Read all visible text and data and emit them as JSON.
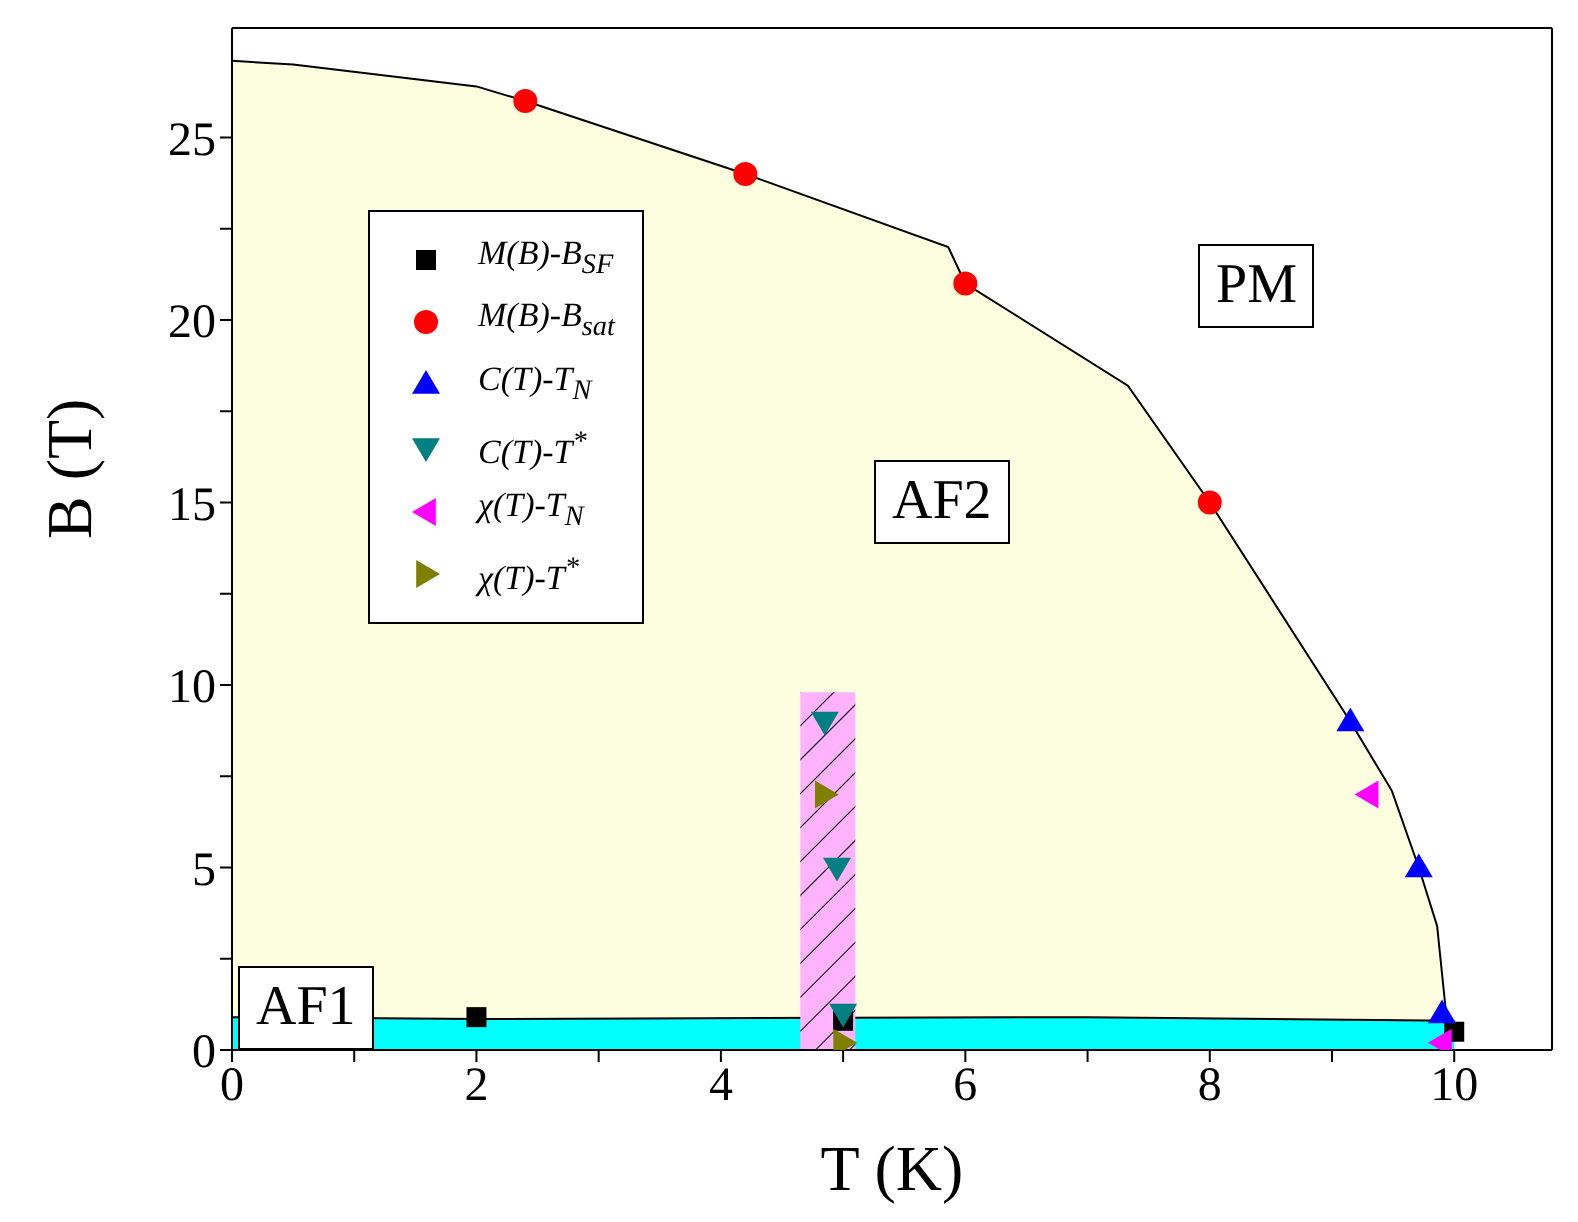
{
  "chart_data": {
    "type": "scatter",
    "xlabel": "T (K)",
    "ylabel": "B (T)",
    "xlim": [
      0,
      10.8
    ],
    "ylim": [
      0,
      28
    ],
    "xticks": [
      0,
      {
        "value": 1,
        "label": null
      },
      2,
      {
        "value": 3,
        "label": null
      },
      4,
      {
        "value": 5,
        "label": null
      },
      6,
      {
        "value": 7,
        "label": null
      },
      8,
      {
        "value": 9,
        "label": null
      },
      10
    ],
    "yticks": [
      0,
      {
        "value": 2.5,
        "label": null
      },
      5,
      {
        "value": 7.5,
        "label": null
      },
      10,
      {
        "value": 12.5,
        "label": null
      },
      15,
      {
        "value": 17.5,
        "label": null
      },
      20,
      {
        "value": 22.5,
        "label": null
      },
      25
    ],
    "legend": "top left",
    "series": [
      {
        "type": "area",
        "color": "#fdfde0",
        "x": [
          0,
          0.5,
          2,
          2.4,
          4.2,
          5.86,
          6,
          7.33,
          8,
          9.15,
          9.49,
          9.71,
          9.86,
          9.94
        ],
        "values": [
          27.1,
          27,
          26.4,
          26,
          24,
          22,
          21,
          18.2,
          15,
          9,
          7.1,
          5,
          3.4,
          0.8
        ]
      },
      {
        "type": "area",
        "color": "#00ffff",
        "x": [
          0,
          2,
          7,
          10
        ],
        "values": [
          0.9,
          0.85,
          0.9,
          0.8
        ]
      },
      {
        "type": "area",
        "color": "#ffb3ff",
        "x": [
          4.65,
          5.1
        ],
        "values": [
          9.8,
          9.8
        ]
      },
      {
        "name": "M(B)-B$_{SF}$",
        "color": "#000000",
        "marker": "square",
        "x": [
          2,
          5,
          10
        ],
        "values": [
          0.9,
          0.8,
          0.5
        ]
      },
      {
        "name": "M(B)-B$_{sat}$",
        "color": "#ff0000",
        "marker": "circle",
        "x": [
          2.4,
          4.2,
          6,
          8
        ],
        "values": [
          26,
          24,
          21,
          15
        ]
      },
      {
        "name": "C(T)-T$_{N}$",
        "color": "#0000ff",
        "marker": "triangle",
        "x": [
          9.15,
          9.71,
          9.9
        ],
        "values": [
          9,
          5,
          1
        ]
      },
      {
        "name": "C(T)-T$^{*}$",
        "color": "#008080",
        "marker": "triangle-down",
        "x": [
          4.85,
          4.95,
          5
        ],
        "values": [
          9,
          5,
          1
        ]
      },
      {
        "name": "χ(T)-T$_{N}$",
        "color": "#ff00ff",
        "marker": "triangle-left",
        "x": [
          9.3,
          9.9
        ],
        "values": [
          7,
          0.2
        ]
      },
      {
        "name": "χ(T)-T$^{*}$",
        "color": "#808000",
        "marker": "triangle-right",
        "x": [
          4.85,
          5
        ],
        "values": [
          7,
          0.2
        ]
      }
    ],
    "annotations": [
      "AF1",
      "AF2",
      "PM"
    ]
  }
}
